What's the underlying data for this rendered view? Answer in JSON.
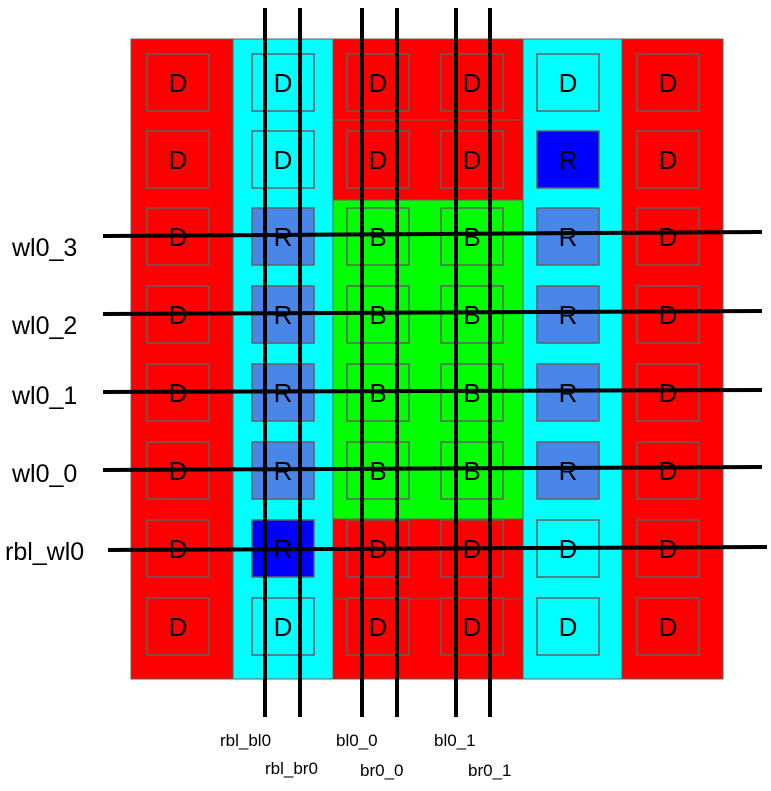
{
  "colors": {
    "red": "#ff0000",
    "cyan": "#00ffff",
    "green": "#00ff00",
    "light_blue": "#4a86e8",
    "blue": "#0000ff",
    "border": "#606060",
    "wire": "#000000"
  },
  "column_regions": [
    "red",
    "cyan",
    "mixed",
    "mixed",
    "cyan",
    "red"
  ],
  "cells": [
    [
      {
        "t": "D",
        "c": "red"
      },
      {
        "t": "D",
        "c": "cyan"
      },
      {
        "t": "D",
        "c": "red"
      },
      {
        "t": "D",
        "c": "red"
      },
      {
        "t": "D",
        "c": "cyan"
      },
      {
        "t": "D",
        "c": "red"
      }
    ],
    [
      {
        "t": "D",
        "c": "red"
      },
      {
        "t": "D",
        "c": "cyan"
      },
      {
        "t": "D",
        "c": "red"
      },
      {
        "t": "D",
        "c": "red"
      },
      {
        "t": "R",
        "c": "blue"
      },
      {
        "t": "D",
        "c": "red"
      }
    ],
    [
      {
        "t": "D",
        "c": "red"
      },
      {
        "t": "R",
        "c": "light_blue"
      },
      {
        "t": "B",
        "c": "green"
      },
      {
        "t": "B",
        "c": "green"
      },
      {
        "t": "R",
        "c": "light_blue"
      },
      {
        "t": "D",
        "c": "red"
      }
    ],
    [
      {
        "t": "D",
        "c": "red"
      },
      {
        "t": "R",
        "c": "light_blue"
      },
      {
        "t": "B",
        "c": "green"
      },
      {
        "t": "B",
        "c": "green"
      },
      {
        "t": "R",
        "c": "light_blue"
      },
      {
        "t": "D",
        "c": "red"
      }
    ],
    [
      {
        "t": "D",
        "c": "red"
      },
      {
        "t": "R",
        "c": "light_blue"
      },
      {
        "t": "B",
        "c": "green"
      },
      {
        "t": "B",
        "c": "green"
      },
      {
        "t": "R",
        "c": "light_blue"
      },
      {
        "t": "D",
        "c": "red"
      }
    ],
    [
      {
        "t": "D",
        "c": "red"
      },
      {
        "t": "R",
        "c": "light_blue"
      },
      {
        "t": "B",
        "c": "green"
      },
      {
        "t": "B",
        "c": "green"
      },
      {
        "t": "R",
        "c": "light_blue"
      },
      {
        "t": "D",
        "c": "red"
      }
    ],
    [
      {
        "t": "D",
        "c": "red"
      },
      {
        "t": "R",
        "c": "blue"
      },
      {
        "t": "D",
        "c": "red"
      },
      {
        "t": "D",
        "c": "red"
      },
      {
        "t": "D",
        "c": "cyan"
      },
      {
        "t": "D",
        "c": "red"
      }
    ],
    [
      {
        "t": "D",
        "c": "red"
      },
      {
        "t": "D",
        "c": "cyan"
      },
      {
        "t": "D",
        "c": "red"
      },
      {
        "t": "D",
        "c": "red"
      },
      {
        "t": "D",
        "c": "cyan"
      },
      {
        "t": "D",
        "c": "red"
      }
    ]
  ],
  "word_lines": [
    "wl0_3",
    "wl0_2",
    "wl0_1",
    "wl0_0",
    "rbl_wl0"
  ],
  "bit_lines": [
    "rbl_bl0",
    "rbl_br0",
    "bl0_0",
    "br0_0",
    "bl0_1",
    "br0_1"
  ]
}
